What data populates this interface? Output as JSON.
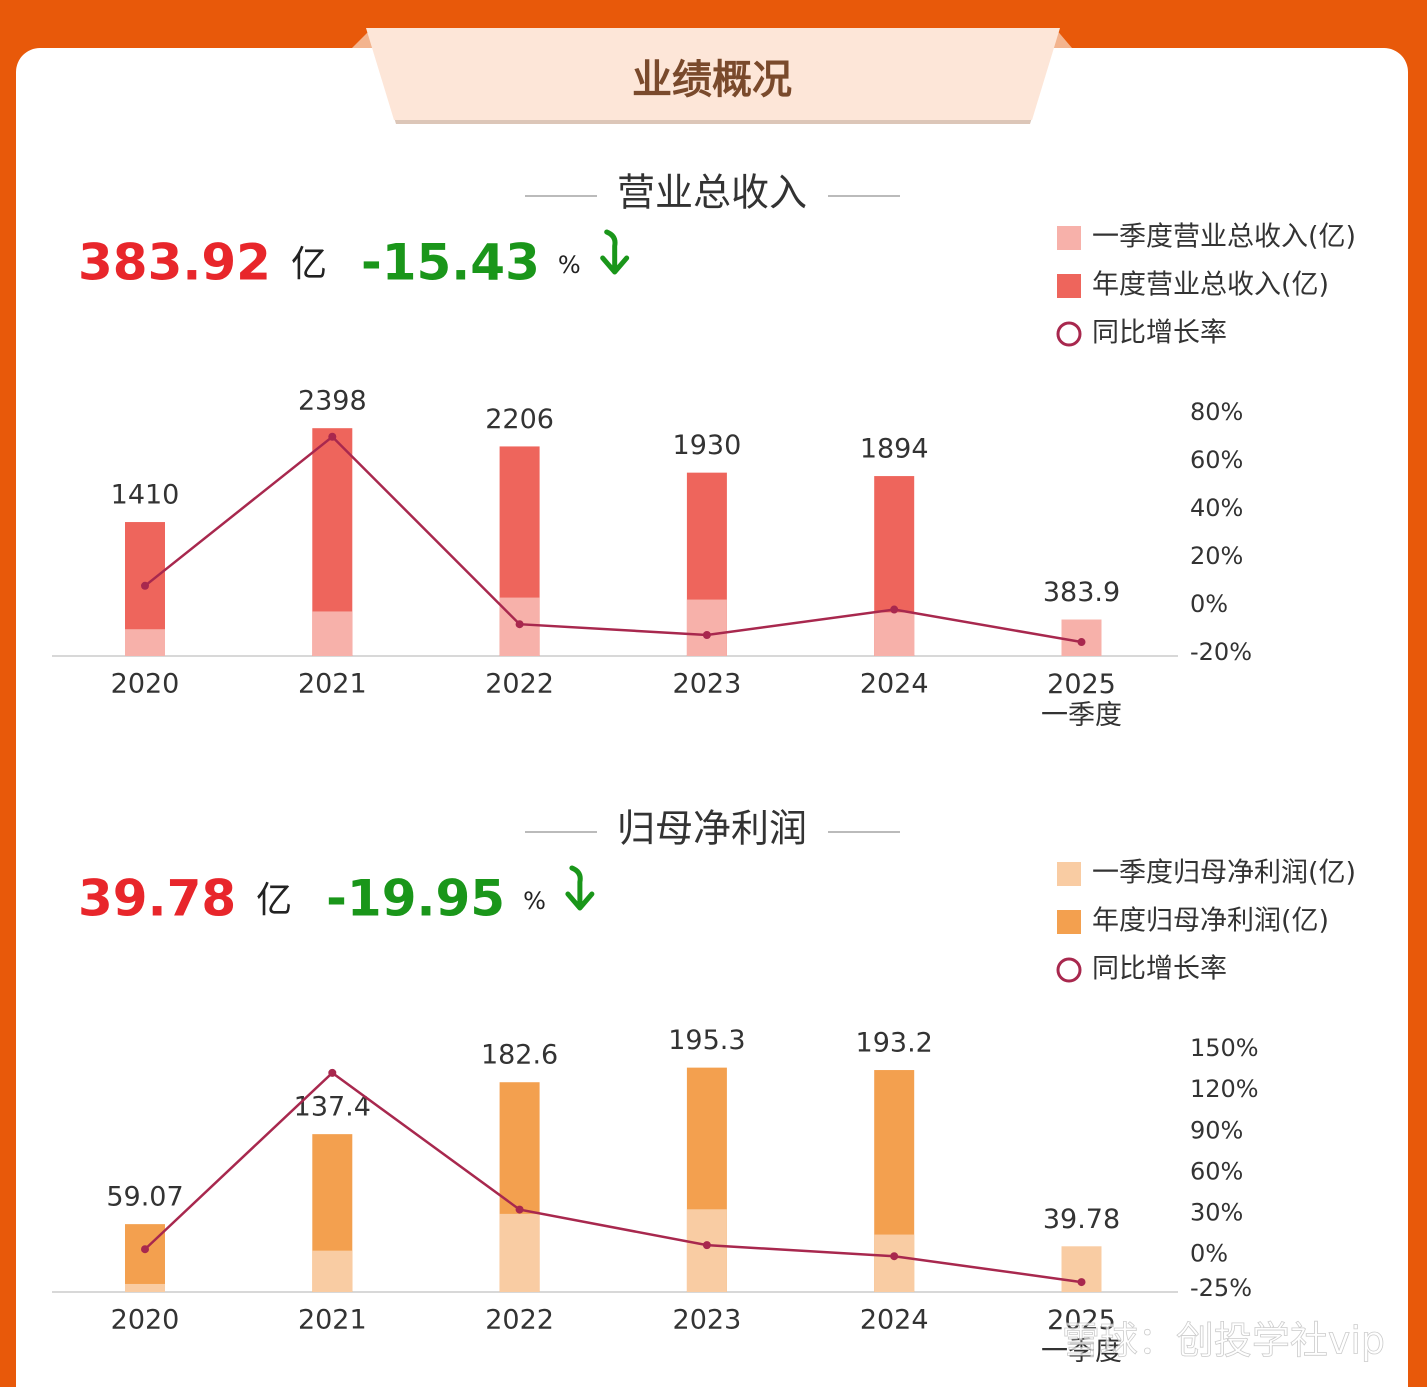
{
  "header": {
    "title": "业绩概况"
  },
  "chart_data": [
    {
      "type": "bar_line",
      "title": "营业总收入",
      "summary": {
        "value": "383.92",
        "unit": "亿",
        "change": "-15.43",
        "change_unit": "%"
      },
      "categories": [
        "2020",
        "2021",
        "2022",
        "2023",
        "2024",
        "2025\n一季度"
      ],
      "series": [
        {
          "name": "一季度营业总收入(亿)",
          "type": "bar",
          "color": "#f7b1aa",
          "values": [
            282,
            469,
            615,
            594,
            459,
            383.92
          ],
          "value_labels": [
            null,
            null,
            null,
            null,
            null,
            "383.9"
          ]
        },
        {
          "name": "年度营业总收入(亿)",
          "type": "bar",
          "color": "#ee655c",
          "values": [
            1410,
            2398,
            2206,
            1930,
            1894,
            null
          ]
        },
        {
          "name": "同比增长率",
          "type": "line",
          "axis": "y2",
          "color": "#a8284e",
          "values": [
            8,
            70.1,
            -8.0,
            -12.5,
            -1.9,
            -15.43
          ]
        }
      ],
      "ylim": [
        0,
        2600
      ],
      "y2lim": [
        -20,
        80
      ],
      "y2ticks": [
        {
          "value": 80,
          "label": "80%"
        },
        {
          "value": 60,
          "label": "60%"
        },
        {
          "value": 40,
          "label": "40%"
        },
        {
          "value": 20,
          "label": "20%"
        },
        {
          "value": 0,
          "label": "0%"
        },
        {
          "value": -20,
          "label": "-20%"
        }
      ],
      "legend": "upper right"
    },
    {
      "type": "bar_line",
      "title": "归母净利润",
      "summary": {
        "value": "39.78",
        "unit": "亿",
        "change": "-19.95",
        "change_unit": "%"
      },
      "categories": [
        "2020",
        "2021",
        "2022",
        "2023",
        "2024",
        "2025\n一季度"
      ],
      "series": [
        {
          "name": "一季度归母净利润(亿)",
          "type": "bar",
          "color": "#f9cca3",
          "values": [
            7,
            36,
            68,
            72,
            50,
            39.78
          ],
          "value_labels": [
            null,
            null,
            null,
            null,
            null,
            "39.78"
          ]
        },
        {
          "name": "年度归母净利润(亿)",
          "type": "bar",
          "color": "#f3a04f",
          "values": [
            59.07,
            137.4,
            182.6,
            195.3,
            193.2,
            null
          ]
        },
        {
          "name": "同比增长率",
          "type": "line",
          "axis": "y2",
          "color": "#a8284e",
          "values": [
            4,
            132.6,
            32.9,
            7.0,
            -1.1,
            -19.95
          ]
        }
      ],
      "ylim": [
        0,
        215
      ],
      "y2lim": [
        -25,
        150
      ],
      "y2ticks": [
        {
          "value": 150,
          "label": "150%"
        },
        {
          "value": 120,
          "label": "120%"
        },
        {
          "value": 90,
          "label": "90%"
        },
        {
          "value": 60,
          "label": "60%"
        },
        {
          "value": 30,
          "label": "30%"
        },
        {
          "value": 0,
          "label": "0%"
        },
        {
          "value": -25,
          "label": "-25%"
        }
      ],
      "legend": "upper right"
    }
  ],
  "watermark": "雪球：创投学社vip"
}
